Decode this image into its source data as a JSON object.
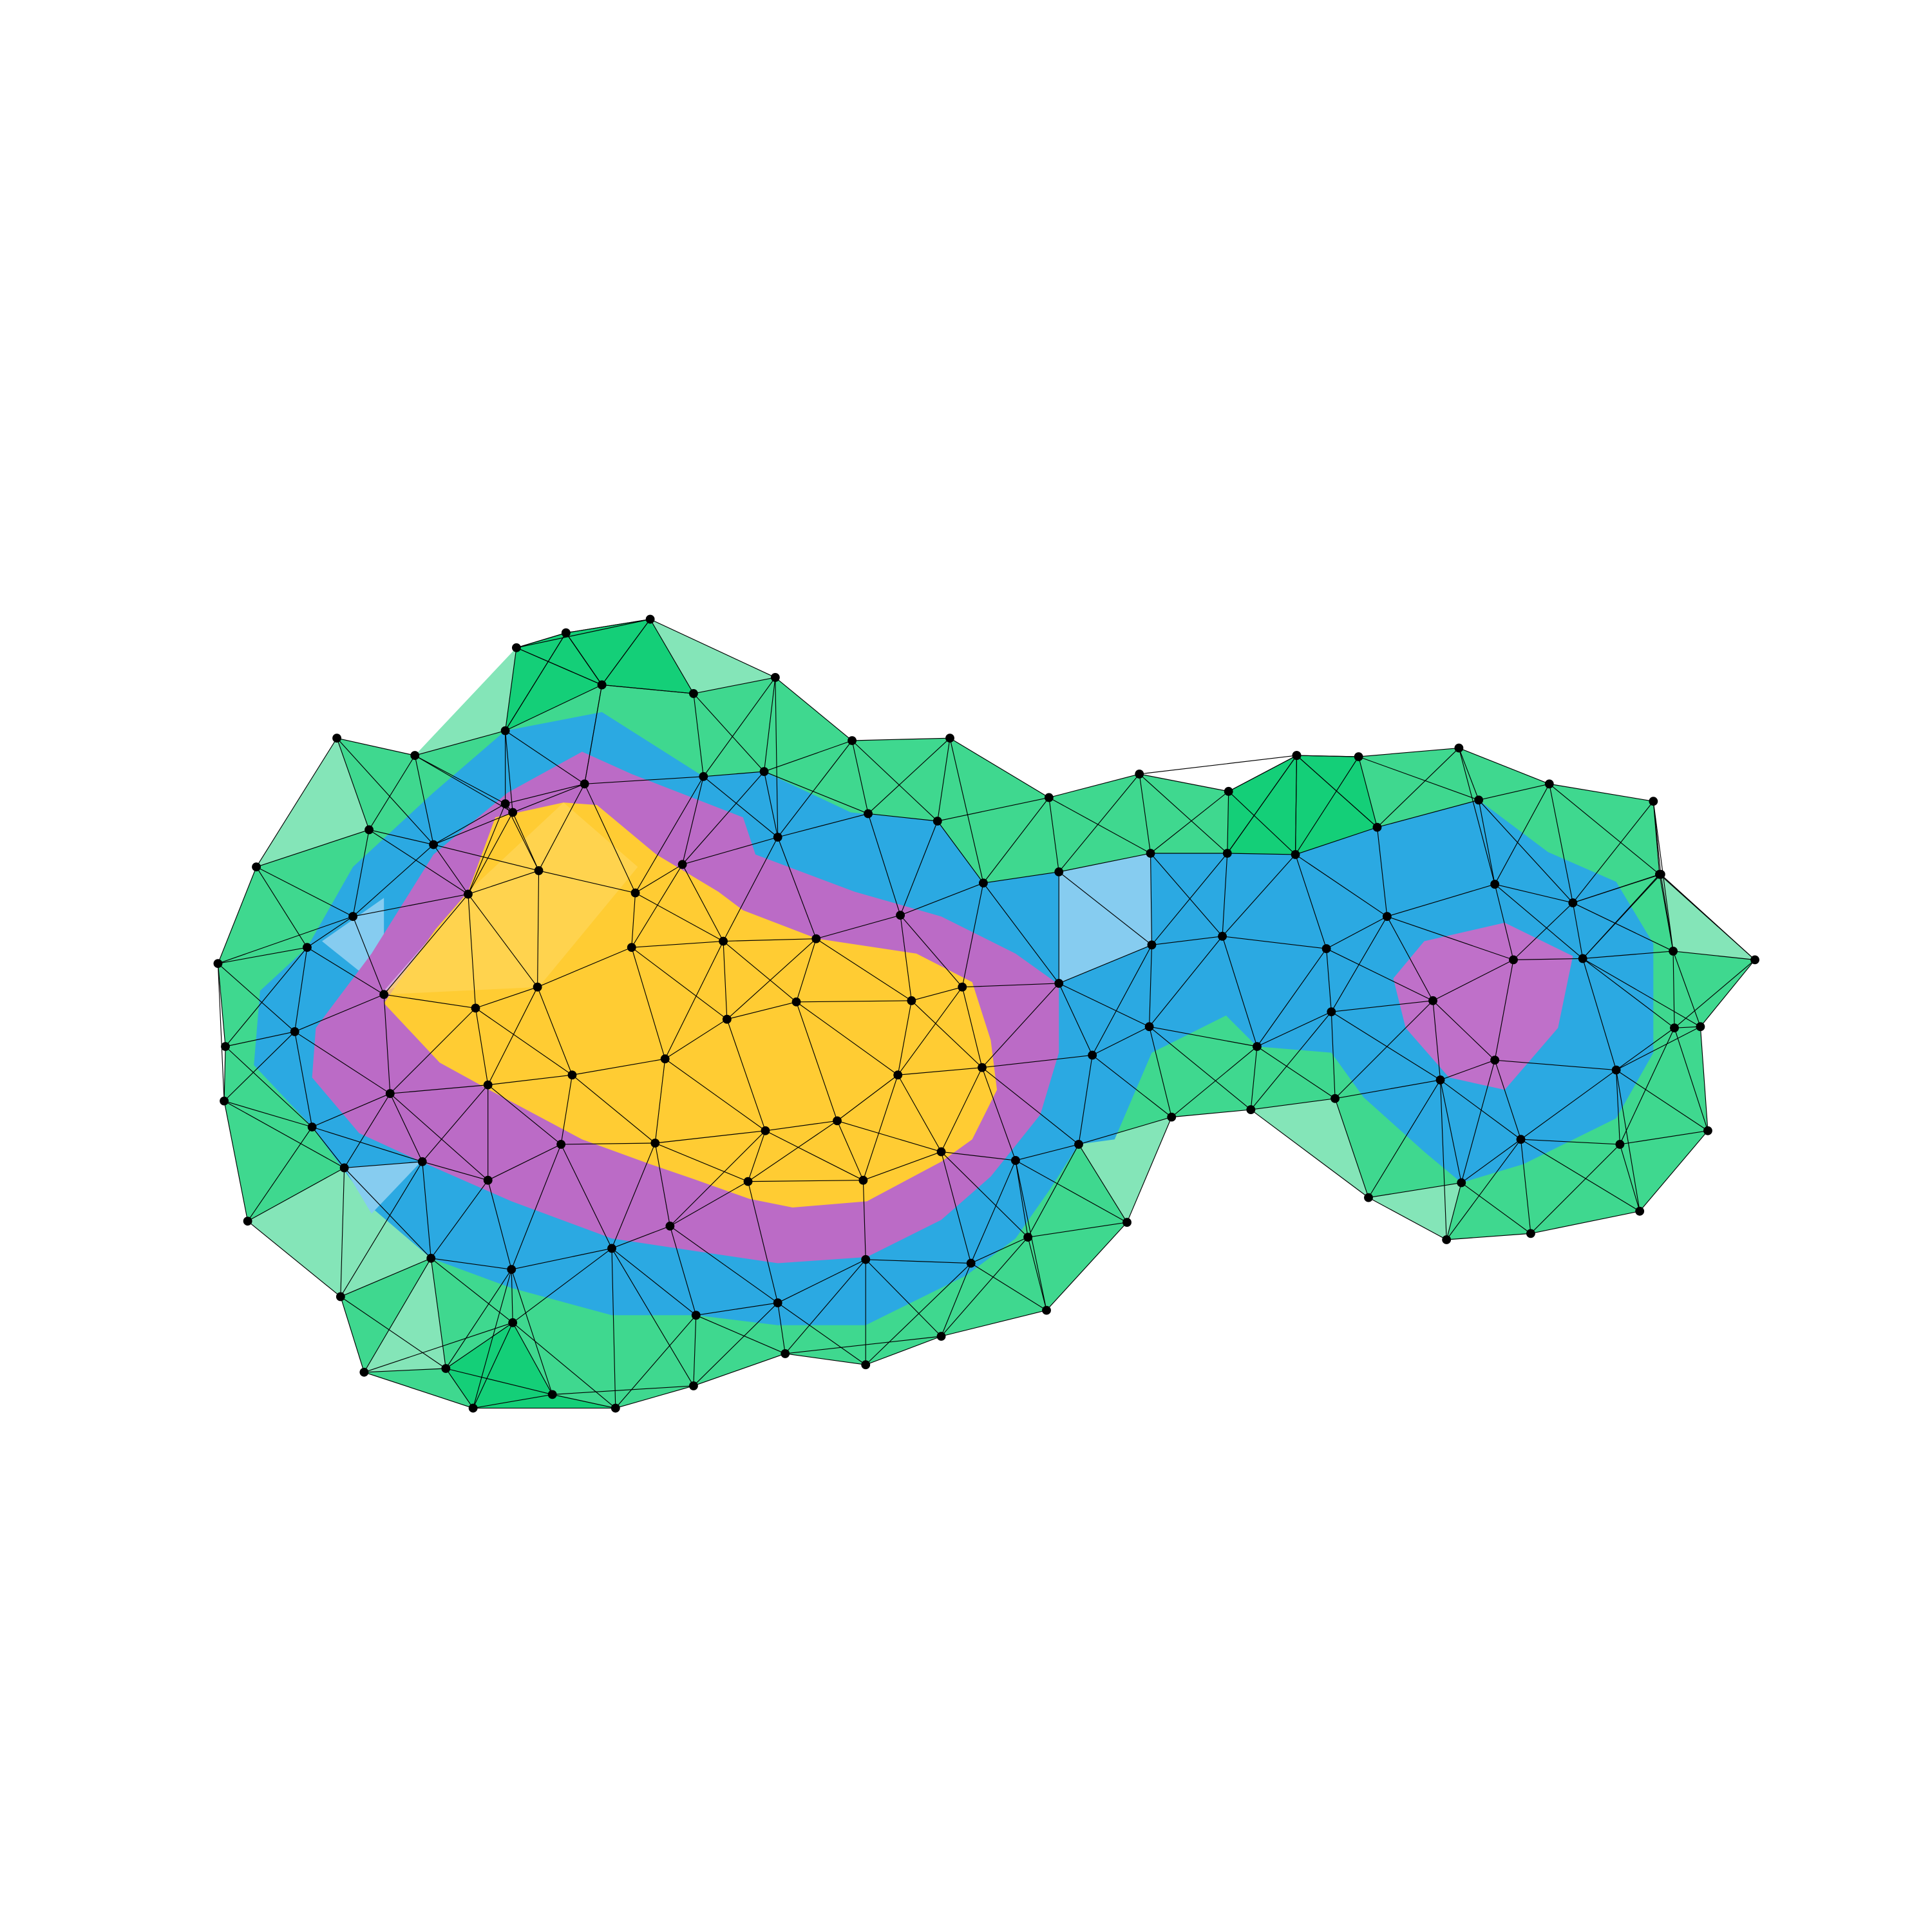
{
  "figure": {
    "description_type": "triangulated contour map",
    "colors": {
      "background": "#ffffff",
      "level_outer_green": "#1fd67f",
      "level_light_green": "#7fe4b6",
      "level_blue": "#28a8e2",
      "level_light_blue": "#86ccf0",
      "level_purple": "#b96bc7",
      "level_light_purple": "#d6a8dd",
      "level_yellow": "#ffcc33",
      "edge": "#000000",
      "node": "#000000"
    },
    "levels": [
      "outer-green",
      "blue",
      "purple",
      "yellow"
    ]
  }
}
